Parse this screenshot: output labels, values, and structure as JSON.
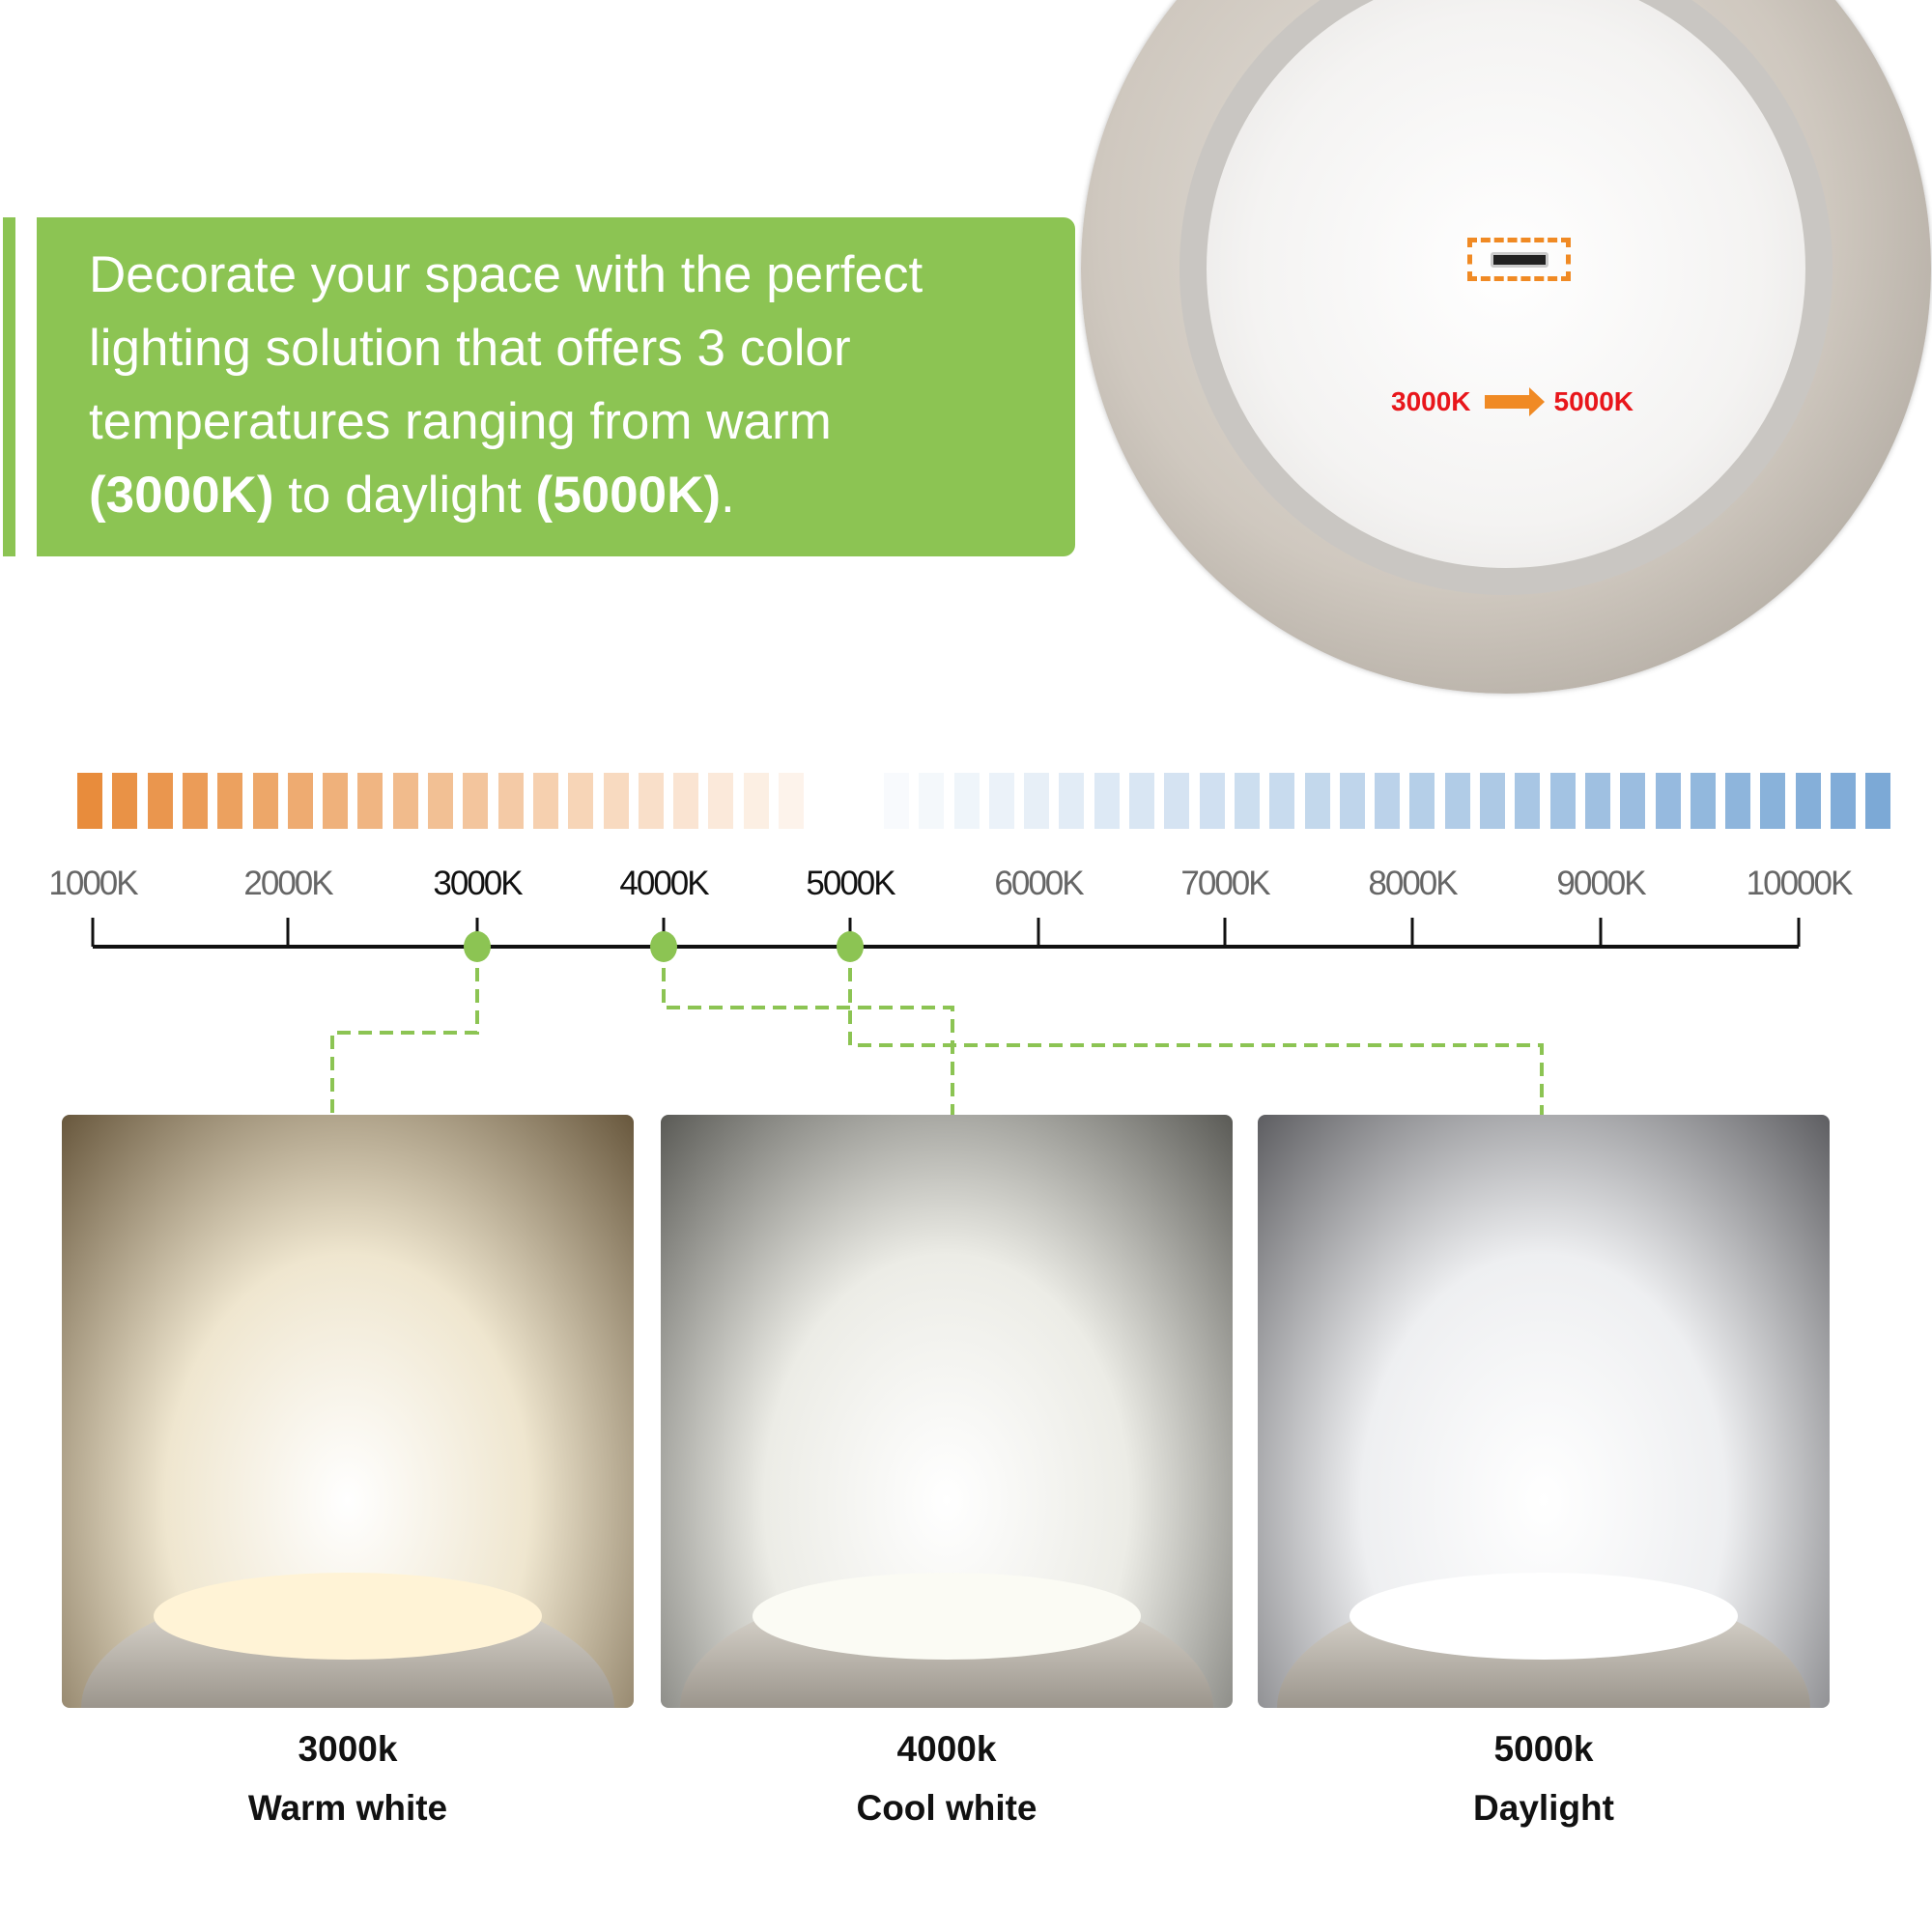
{
  "banner": {
    "line1": "Decorate your space with the perfect",
    "line2": "lighting solution that offers 3 color",
    "line3": "temperatures ranging from warm",
    "line4_b1": "(3000K)",
    "line4_mid": " to daylight ",
    "line4_b2": "(5000K)",
    "line4_end": "."
  },
  "product": {
    "from": "3000K",
    "to": "5000K",
    "accent": "#f08a24",
    "text_color": "#e8161b"
  },
  "scale": {
    "labels": [
      "1000K",
      "2000K",
      "3000K",
      "4000K",
      "5000K",
      "6000K",
      "7000K",
      "8000K",
      "9000K",
      "10000K"
    ],
    "highlighted": [
      "3000K",
      "4000K",
      "5000K"
    ],
    "marker_color": "#8cc453"
  },
  "panels": [
    {
      "temp": "3000k",
      "name": "Warm white",
      "bg": "#efe6cf"
    },
    {
      "temp": "4000k",
      "name": "Cool white",
      "bg": "#ececE6"
    },
    {
      "temp": "5000k",
      "name": "Daylight",
      "bg": "#eeeff1"
    }
  ]
}
